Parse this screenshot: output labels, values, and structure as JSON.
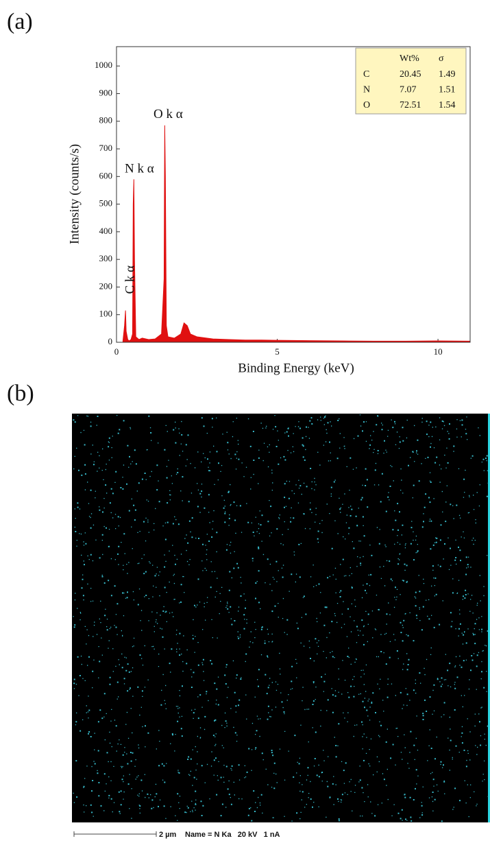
{
  "panel_labels": [
    "(a)",
    "(b)"
  ],
  "chart_data": {
    "type": "area",
    "x_label": "Binding Energy (keV)",
    "y_label": "Intensity (counts/s)",
    "x": [
      0.2,
      0.25,
      0.28,
      0.3,
      0.35,
      0.39,
      0.45,
      0.5,
      0.52,
      0.54,
      0.56,
      0.6,
      0.7,
      0.8,
      1.0,
      1.2,
      1.4,
      1.48,
      1.5,
      1.52,
      1.55,
      1.6,
      1.8,
      2.0,
      2.1,
      2.2,
      2.3,
      2.5,
      3.0,
      3.5,
      4.0,
      4.5,
      5.0,
      6.0,
      7.0,
      8.0,
      9.0,
      10.0,
      11.0
    ],
    "values": [
      5,
      60,
      115,
      40,
      10,
      5,
      10,
      30,
      500,
      590,
      300,
      20,
      10,
      15,
      10,
      12,
      30,
      230,
      785,
      600,
      60,
      20,
      15,
      30,
      70,
      60,
      30,
      20,
      12,
      10,
      8,
      8,
      7,
      6,
      5,
      4,
      4,
      5,
      4
    ],
    "color": "#e01010",
    "xlim": [
      0,
      11
    ],
    "xticks": [
      0,
      5,
      10
    ],
    "ylim": [
      0,
      1070
    ],
    "yticks": [
      0,
      100,
      200,
      300,
      400,
      500,
      600,
      700,
      800,
      900,
      1000
    ],
    "annotations": [
      {
        "text": "C k α",
        "x": 0.28,
        "y": 115
      },
      {
        "text": "N k α",
        "x": 0.54,
        "y": 590
      },
      {
        "text": "O k α",
        "x": 1.5,
        "y": 785
      }
    ],
    "table": {
      "columns": [
        "Wt%",
        "σ"
      ],
      "rows": [
        {
          "label": "C",
          "values": [
            20.45,
            1.49
          ]
        },
        {
          "label": "N",
          "values": [
            7.07,
            1.51
          ]
        },
        {
          "label": "O",
          "values": [
            72.51,
            1.54
          ]
        }
      ]
    }
  },
  "map": {
    "scale_bar": "2 µm",
    "info": "Name = N Ka   20 kV   1 nA"
  }
}
